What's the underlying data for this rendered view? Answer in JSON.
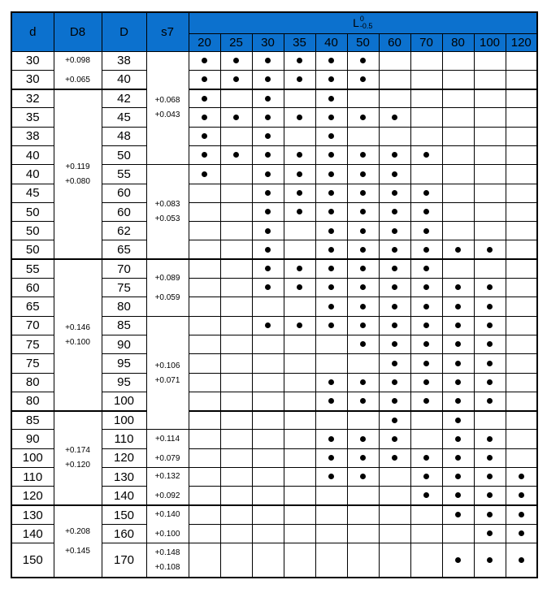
{
  "header": {
    "d": "d",
    "D8": "D8",
    "D": "D",
    "s7": "s7",
    "L_base": "L",
    "L_sup": "0",
    "L_sub": "-0.5",
    "lengths": [
      "20",
      "25",
      "30",
      "35",
      "40",
      "50",
      "60",
      "70",
      "80",
      "100",
      "120"
    ]
  },
  "colors": {
    "header_bg": "#0c71ce",
    "border": "#000000",
    "dot": "#000000",
    "text": "#000000"
  },
  "rows": [
    {
      "d": "30",
      "D": "38",
      "dots": [
        "20",
        "25",
        "30",
        "35",
        "40",
        "50"
      ]
    },
    {
      "d": "30",
      "D": "40",
      "dots": [
        "20",
        "25",
        "30",
        "35",
        "40",
        "50"
      ]
    },
    {
      "d": "32",
      "D": "42",
      "dots": [
        "20",
        "30",
        "40"
      ]
    },
    {
      "d": "35",
      "D": "45",
      "dots": [
        "20",
        "25",
        "30",
        "35",
        "40",
        "50",
        "60"
      ]
    },
    {
      "d": "38",
      "D": "48",
      "dots": [
        "20",
        "30",
        "40"
      ]
    },
    {
      "d": "40",
      "D": "50",
      "dots": [
        "20",
        "25",
        "30",
        "35",
        "40",
        "50",
        "60",
        "70"
      ]
    },
    {
      "d": "40",
      "D": "55",
      "dots": [
        "20",
        "30",
        "35",
        "40",
        "50",
        "60"
      ]
    },
    {
      "d": "45",
      "D": "60",
      "dots": [
        "30",
        "35",
        "40",
        "50",
        "60",
        "70"
      ]
    },
    {
      "d": "50",
      "D": "60",
      "dots": [
        "30",
        "35",
        "40",
        "50",
        "60",
        "70"
      ]
    },
    {
      "d": "50",
      "D": "62",
      "dots": [
        "30",
        "40",
        "50",
        "60",
        "70"
      ]
    },
    {
      "d": "50",
      "D": "65",
      "dots": [
        "30",
        "40",
        "50",
        "60",
        "70",
        "80",
        "100"
      ]
    },
    {
      "d": "55",
      "D": "70",
      "dots": [
        "30",
        "35",
        "40",
        "50",
        "60",
        "70"
      ]
    },
    {
      "d": "60",
      "D": "75",
      "dots": [
        "30",
        "35",
        "40",
        "50",
        "60",
        "70",
        "80",
        "100"
      ]
    },
    {
      "d": "65",
      "D": "80",
      "dots": [
        "40",
        "50",
        "60",
        "70",
        "80",
        "100"
      ]
    },
    {
      "d": "70",
      "D": "85",
      "dots": [
        "30",
        "35",
        "40",
        "50",
        "60",
        "70",
        "80",
        "100"
      ]
    },
    {
      "d": "75",
      "D": "90",
      "dots": [
        "50",
        "60",
        "70",
        "80",
        "100"
      ]
    },
    {
      "d": "75",
      "D": "95",
      "dots": [
        "60",
        "70",
        "80",
        "100"
      ]
    },
    {
      "d": "80",
      "D": "95",
      "dots": [
        "40",
        "50",
        "60",
        "70",
        "80",
        "100"
      ]
    },
    {
      "d": "80",
      "D": "100",
      "dots": [
        "40",
        "50",
        "60",
        "70",
        "80",
        "100"
      ]
    },
    {
      "d": "85",
      "D": "100",
      "dots": [
        "60",
        "80"
      ]
    },
    {
      "d": "90",
      "D": "110",
      "dots": [
        "40",
        "50",
        "60",
        "80",
        "100"
      ]
    },
    {
      "d": "100",
      "D": "120",
      "dots": [
        "40",
        "50",
        "60",
        "70",
        "80",
        "100"
      ]
    },
    {
      "d": "110",
      "D": "130",
      "dots": [
        "40",
        "50",
        "70",
        "80",
        "100",
        "120"
      ]
    },
    {
      "d": "120",
      "D": "140",
      "dots": [
        "70",
        "80",
        "100",
        "120"
      ]
    },
    {
      "d": "130",
      "D": "150",
      "dots": [
        "80",
        "100",
        "120"
      ]
    },
    {
      "d": "140",
      "D": "160",
      "dots": [
        "100",
        "120"
      ]
    },
    {
      "d": "150",
      "D": "170",
      "dots": [
        "80",
        "100",
        "120"
      ]
    }
  ],
  "d8_groups": [
    {
      "start": 0,
      "span": 2,
      "upper": "+0.098",
      "lower": "+0.065"
    },
    {
      "start": 2,
      "span": 9,
      "upper": "+0.119",
      "lower": "+0.080"
    },
    {
      "start": 11,
      "span": 8,
      "upper": "+0.146",
      "lower": "+0.100"
    },
    {
      "start": 19,
      "span": 5,
      "upper": "+0.174",
      "lower": "+0.120"
    },
    {
      "start": 24,
      "span": 3,
      "upper": "+0.208",
      "lower": "+0.145"
    }
  ],
  "s7_groups": [
    {
      "start": 0,
      "span": 6,
      "upper": "+0.068",
      "lower": "+0.043"
    },
    {
      "start": 6,
      "span": 5,
      "upper": "+0.083",
      "lower": "+0.053"
    },
    {
      "start": 11,
      "span": 3,
      "upper": "+0.089",
      "lower": "+0.059"
    },
    {
      "start": 14,
      "span": 6,
      "upper": "+0.106",
      "lower": "+0.071"
    },
    {
      "start": 20,
      "span": 2,
      "upper": "+0.114",
      "lower": "+0.079"
    },
    {
      "start": 22,
      "span": 2,
      "upper": "+0.132",
      "lower": "+0.092"
    },
    {
      "start": 24,
      "span": 2,
      "upper": "+0.140",
      "lower": "+0.100"
    },
    {
      "start": 26,
      "span": 1,
      "upper": "+0.148",
      "lower": "+0.108"
    }
  ],
  "block_boundaries": [
    2,
    11,
    19,
    24
  ]
}
